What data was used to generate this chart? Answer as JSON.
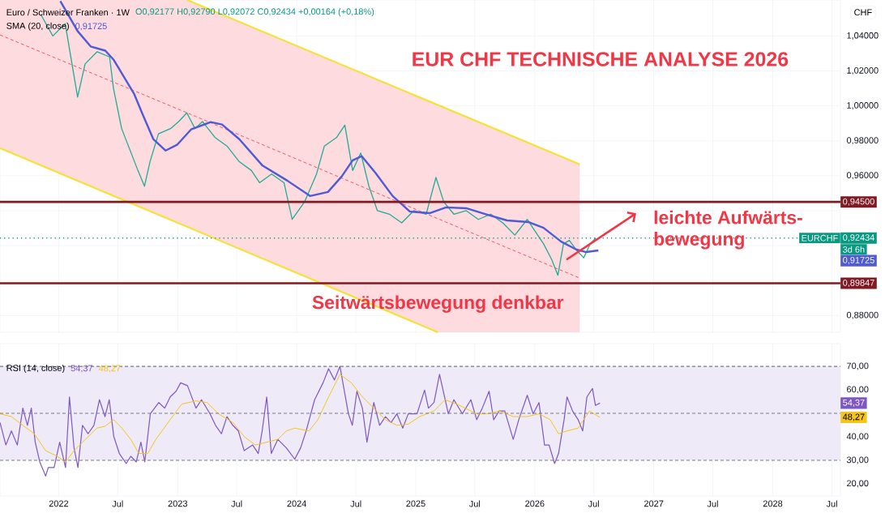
{
  "chart_data": [
    {
      "type": "line",
      "title": "EUR CHF TECHNISCHE ANALYSE 2026",
      "annotations": [
        "Euro / Schweizer Franken · 1W",
        "O0,92177 H0,92790 L0,92072 C0,92434 +0,00164 (+0,18%)",
        "SMA (20, close)",
        "0,91725",
        "Seitwärtsbewegung denkbar",
        "leichte Aufwärts-",
        "bewegung",
        "EURCHF",
        "3d 6h",
        "0,91725",
        "CHF"
      ],
      "xlim": [
        "2021-07-05",
        "2028-07-27"
      ],
      "ylim": [
        0.8704,
        1.0606
      ],
      "xticks": [
        {
          "value": "2022-01-01",
          "label": null
        },
        {
          "value": "2022-07-01",
          "label": null
        },
        {
          "value": "2023-01-01",
          "label": null
        },
        {
          "value": "2023-07-01",
          "label": null
        },
        {
          "value": "2024-01-01",
          "label": null
        },
        {
          "value": "2024-07-01",
          "label": null
        },
        {
          "value": "2025-01-01",
          "label": null
        },
        {
          "value": "2025-07-01",
          "label": null
        },
        {
          "value": "2026-01-01",
          "label": null
        },
        {
          "value": "2026-07-01",
          "label": null
        },
        {
          "value": "2027-01-01",
          "label": null
        },
        {
          "value": "2027-07-01",
          "label": null
        },
        {
          "value": "2028-01-01",
          "label": null
        },
        {
          "value": "2028-07-01",
          "label": null
        }
      ],
      "yticks": [
        {
          "value": 0.88,
          "label": "0,88000"
        },
        {
          "value": 0.9,
          "label": null
        },
        {
          "value": 0.92,
          "label": null
        },
        {
          "value": 0.94,
          "label": null
        },
        {
          "value": 0.96,
          "label": "0,96000"
        },
        {
          "value": 0.98,
          "label": "0,98000"
        },
        {
          "value": 1.0,
          "label": "1,00000"
        },
        {
          "value": 1.02,
          "label": "1,02000"
        },
        {
          "value": 1.04,
          "label": "1,04000"
        }
      ],
      "tick_labels": "y",
      "grid": true,
      "ref_lines": [
        {
          "axis": "y",
          "value": 0.945,
          "label": "0,94500",
          "color": "#801922"
        },
        {
          "axis": "y",
          "value": 0.89847,
          "label": "0,89847",
          "color": "#801922"
        },
        {
          "axis": "y",
          "value": 0.92434,
          "label": "0,92434",
          "color": "#089981",
          "line_style": "dotted"
        }
      ],
      "series": [
        {
          "color": "#f23645",
          "line_style": "dashed",
          "x": [
            "2021-07-05",
            "2023-01-30",
            "2025-03-10",
            "2026-05-19"
          ],
          "values": [
            1.0406,
            0.996,
            0.9354,
            0.9014
          ],
          "lower": [
            0.9758,
            0.9309,
            0.8704,
            0.8704
          ],
          "upper": [
            1.0606,
            1.0606,
            1.0006,
            0.9665
          ]
        },
        {
          "color": "#f5e138",
          "x": [
            "2023-01-30",
            "2026-05-19"
          ],
          "values": [
            1.0606,
            0.9665
          ]
        },
        {
          "color": "#f5e138",
          "x": [
            "2021-07-05",
            "2025-03-10"
          ],
          "values": [
            0.9758,
            0.8704
          ]
        },
        {
          "color": "#22ab94",
          "x": [
            "2021-11-08",
            "2021-12-14",
            "2022-01-21",
            "2022-02-28",
            "2022-03-23",
            "2022-04-29",
            "2022-06-06",
            "2022-06-18",
            "2022-07-13",
            "2022-08-07",
            "2022-09-01",
            "2022-09-21",
            "2022-10-08",
            "2022-11-03",
            "2022-12-10",
            "2023-01-04",
            "2023-01-29",
            "2023-02-23",
            "2023-03-18",
            "2023-04-25",
            "2023-06-01",
            "2023-07-09",
            "2023-08-15",
            "2023-09-09",
            "2023-10-16",
            "2023-11-23",
            "2023-12-18",
            "2024-01-25",
            "2024-03-02",
            "2024-03-26",
            "2024-05-03",
            "2024-05-28",
            "2024-06-21",
            "2024-07-16",
            "2024-08-10",
            "2024-09-05",
            "2024-10-12",
            "2024-11-19",
            "2024-12-26",
            "2025-02-02",
            "2025-03-04",
            "2025-03-28",
            "2025-04-28",
            "2025-06-05",
            "2025-07-12",
            "2025-08-19",
            "2025-09-25",
            "2025-11-01",
            "2025-12-09",
            "2026-01-03",
            "2026-01-28",
            "2026-02-22",
            "2026-03-13",
            "2026-03-30",
            "2026-04-17",
            "2026-05-11",
            "2026-05-31",
            "2026-06-20",
            "2026-07-07"
          ],
          "values": [
            1.052,
            1.04,
            1.047,
            1.005,
            1.024,
            1.031,
            1.028,
            1.01,
            0.987,
            0.975,
            0.963,
            0.954,
            0.968,
            0.984,
            0.987,
            0.991,
            0.996,
            0.987,
            0.991,
            0.982,
            0.977,
            0.968,
            0.963,
            0.956,
            0.961,
            0.956,
            0.935,
            0.945,
            0.961,
            0.977,
            0.982,
            0.989,
            0.963,
            0.973,
            0.954,
            0.94,
            0.938,
            0.933,
            0.94,
            0.938,
            0.959,
            0.945,
            0.938,
            0.94,
            0.935,
            0.938,
            0.933,
            0.926,
            0.935,
            0.928,
            0.921,
            0.912,
            0.903,
            0.921,
            0.923,
            0.917,
            0.913,
            0.921,
            0.92434
          ]
        },
        {
          "color": "#4f5bd5",
          "x": [
            "2022-01-06",
            "2022-02-28",
            "2022-04-09",
            "2022-05-24",
            "2022-06-18",
            "2022-08-20",
            "2022-09-14",
            "2022-10-18",
            "2022-11-25",
            "2022-12-30",
            "2023-02-11",
            "2023-04-12",
            "2023-05-17",
            "2023-07-09",
            "2023-09-17",
            "2023-12-03",
            "2024-02-11",
            "2024-04-06",
            "2024-05-18",
            "2024-06-21",
            "2024-07-19",
            "2024-08-31",
            "2024-10-22",
            "2024-12-14",
            "2025-02-14",
            "2025-04-04",
            "2025-06-05",
            "2025-08-02",
            "2025-10-08",
            "2025-12-12",
            "2026-01-28",
            "2026-03-23",
            "2026-05-09",
            "2026-06-08",
            "2026-07-15"
          ],
          "values": [
            1.06,
            1.0428,
            1.034,
            1.0316,
            1.0265,
            1.007,
            0.9958,
            0.981,
            0.9744,
            0.9777,
            0.9865,
            0.9907,
            0.9893,
            0.9809,
            0.966,
            0.9572,
            0.9484,
            0.9507,
            0.9595,
            0.9688,
            0.9712,
            0.9614,
            0.9484,
            0.9395,
            0.9386,
            0.9419,
            0.9414,
            0.9381,
            0.9344,
            0.9335,
            0.9302,
            0.9223,
            0.9177,
            0.9163,
            0.91725
          ]
        }
      ]
    },
    {
      "type": "line",
      "annotations": [
        "RSI (14, close)",
        "54,37",
        "48,27",
        "54,37",
        "48,27"
      ],
      "xlim": [
        "2021-07-05",
        "2028-07-27"
      ],
      "ylim": [
        14.8,
        79.7
      ],
      "xticks": [
        {
          "value": "2022-01-01",
          "label": "2022"
        },
        {
          "value": "2022-07-01",
          "label": "Jul"
        },
        {
          "value": "2023-01-01",
          "label": "2023"
        },
        {
          "value": "2023-07-01",
          "label": "Jul"
        },
        {
          "value": "2024-01-01",
          "label": "2024"
        },
        {
          "value": "2024-07-01",
          "label": "Jul"
        },
        {
          "value": "2025-01-01",
          "label": "2025"
        },
        {
          "value": "2025-07-01",
          "label": "Jul"
        },
        {
          "value": "2026-01-01",
          "label": "2026"
        },
        {
          "value": "2026-07-01",
          "label": "Jul"
        },
        {
          "value": "2027-01-01",
          "label": "2027"
        },
        {
          "value": "2027-07-01",
          "label": "Jul"
        },
        {
          "value": "2028-01-01",
          "label": "2028"
        },
        {
          "value": "2028-07-01",
          "label": "Jul"
        }
      ],
      "yticks": [
        {
          "value": 20,
          "label": "20,00"
        },
        {
          "value": 30,
          "label": "30,00"
        },
        {
          "value": 40,
          "label": "40,00"
        },
        {
          "value": 50,
          "label": null
        },
        {
          "value": 60,
          "label": "60,00"
        },
        {
          "value": 70,
          "label": "70,00"
        }
      ],
      "grid": "x",
      "bands": [
        {
          "axis": "y",
          "from": 30,
          "to": 70,
          "color": "#efeaf8"
        }
      ],
      "ref_lines": [
        {
          "axis": "y",
          "value": 70,
          "color": "#787b86",
          "line_style": "dashed"
        },
        {
          "axis": "y",
          "value": 50,
          "color": "#787b86",
          "line_style": "dashed"
        },
        {
          "axis": "y",
          "value": 30,
          "color": "#787b86",
          "line_style": "dashed"
        }
      ],
      "series": [
        {
          "color": "#7e57c2",
          "x": [
            "2021-07-05",
            "2021-07-23",
            "2021-08-09",
            "2021-08-27",
            "2021-09-13",
            "2021-09-27",
            "2021-10-09",
            "2021-10-21",
            "2021-11-04",
            "2021-11-22",
            "2021-11-30",
            "2021-12-18",
            "2022-01-04",
            "2022-01-22",
            "2022-02-03",
            "2022-02-17",
            "2022-03-01",
            "2022-03-15",
            "2022-04-01",
            "2022-04-19",
            "2022-05-06",
            "2022-05-23",
            "2022-06-05",
            "2022-06-19",
            "2022-07-06",
            "2022-07-27",
            "2022-08-10",
            "2022-08-27",
            "2022-09-10",
            "2022-09-22",
            "2022-10-09",
            "2022-11-04",
            "2022-11-22",
            "2022-12-09",
            "2022-12-27",
            "2023-01-10",
            "2023-01-31",
            "2023-02-26",
            "2023-03-15",
            "2023-04-10",
            "2023-04-27",
            "2023-05-15",
            "2023-06-01",
            "2023-06-19",
            "2023-07-06",
            "2023-07-24",
            "2023-08-19",
            "2023-09-05",
            "2023-09-17",
            "2023-10-01",
            "2023-10-15",
            "2023-11-04",
            "2023-11-30",
            "2023-12-26",
            "2024-01-13",
            "2024-01-30",
            "2024-02-25",
            "2024-03-22",
            "2024-04-08",
            "2024-04-26",
            "2024-05-13",
            "2024-06-08",
            "2024-06-20",
            "2024-07-04",
            "2024-07-21",
            "2024-08-04",
            "2024-08-25",
            "2024-09-12",
            "2024-09-30",
            "2024-10-17",
            "2024-11-04",
            "2024-11-22",
            "2024-12-09",
            "2025-01-05",
            "2025-01-28",
            "2025-02-09",
            "2025-02-26",
            "2025-03-15",
            "2025-04-11",
            "2025-04-28",
            "2025-05-24",
            "2025-06-19",
            "2025-07-07",
            "2025-07-24",
            "2025-08-14",
            "2025-08-28",
            "2025-09-14",
            "2025-10-01",
            "2025-10-27",
            "2025-11-13",
            "2025-12-09",
            "2025-12-27",
            "2026-01-14",
            "2026-01-31",
            "2026-02-14",
            "2026-03-03",
            "2026-03-15",
            "2026-04-01",
            "2026-04-10",
            "2026-04-27",
            "2026-05-14",
            "2026-05-28",
            "2026-06-10",
            "2026-06-27",
            "2026-07-06",
            "2026-07-20"
          ],
          "values": [
            46.1,
            36.5,
            42.5,
            36.5,
            52.2,
            44.9,
            52.2,
            37.7,
            29.3,
            23.3,
            26.9,
            26.9,
            37.7,
            26.9,
            57.0,
            35.3,
            26.9,
            44.9,
            41.3,
            44.9,
            55.8,
            48.6,
            55.8,
            40.1,
            32.9,
            28.6,
            31.7,
            29.3,
            37.7,
            29.3,
            49.8,
            54.6,
            52.2,
            57.0,
            59.4,
            63.0,
            61.8,
            52.2,
            55.8,
            49.8,
            44.9,
            41.3,
            48.6,
            44.9,
            42.5,
            34.1,
            36.5,
            32.9,
            42.5,
            57.0,
            32.9,
            38.9,
            35.3,
            30.5,
            35.3,
            42.5,
            55.8,
            63.0,
            69.0,
            64.2,
            70.0,
            49.8,
            44.9,
            59.4,
            52.2,
            37.7,
            54.6,
            44.9,
            48.6,
            46.1,
            49.8,
            43.7,
            49.8,
            49.8,
            59.9,
            52.2,
            54.6,
            66.6,
            49.8,
            55.8,
            49.8,
            55.8,
            47.3,
            52.2,
            59.4,
            47.3,
            51.0,
            51.0,
            38.9,
            47.3,
            57.7,
            49.8,
            54.6,
            36.5,
            36.5,
            28.6,
            32.9,
            47.3,
            57.0,
            51.0,
            47.3,
            42.5,
            57.0,
            60.6,
            53.4,
            54.37
          ]
        },
        {
          "color": "#f5c518",
          "x": [
            "2021-07-05",
            "2021-08-09",
            "2021-09-13",
            "2021-10-18",
            "2021-11-22",
            "2021-12-27",
            "2022-01-22",
            "2022-02-17",
            "2022-03-24",
            "2022-04-28",
            "2022-05-23",
            "2022-06-19",
            "2022-07-14",
            "2022-08-10",
            "2022-09-04",
            "2022-10-01",
            "2022-10-26",
            "2022-12-09",
            "2023-01-13",
            "2023-02-26",
            "2023-04-01",
            "2023-05-06",
            "2023-06-19",
            "2023-07-24",
            "2023-08-27",
            "2023-10-01",
            "2023-11-04",
            "2023-11-30",
            "2023-12-26",
            "2024-02-08",
            "2024-03-06",
            "2024-04-08",
            "2024-05-13",
            "2024-06-17",
            "2024-07-21",
            "2024-08-25",
            "2024-09-30",
            "2024-11-04",
            "2024-12-09",
            "2025-01-13",
            "2025-02-26",
            "2025-04-01",
            "2025-05-15",
            "2025-07-07",
            "2025-08-10",
            "2025-09-14",
            "2025-10-27",
            "2025-12-09",
            "2026-01-14",
            "2026-02-17",
            "2026-03-15",
            "2026-04-10",
            "2026-05-14",
            "2026-06-18",
            "2026-07-20"
          ],
          "values": [
            49.8,
            48.6,
            44.9,
            41.3,
            34.1,
            31.7,
            29.3,
            34.1,
            38.9,
            43.7,
            44.5,
            47.3,
            43.7,
            38.9,
            32.9,
            32.9,
            38.9,
            47.3,
            53.9,
            55.3,
            54.6,
            49.8,
            46.1,
            40.1,
            36.5,
            37.7,
            38.9,
            42.5,
            43.7,
            42.5,
            47.3,
            57.0,
            66.6,
            63.0,
            57.0,
            52.2,
            47.3,
            44.9,
            45.4,
            48.6,
            51.0,
            55.8,
            53.4,
            49.8,
            49.8,
            51.0,
            48.6,
            48.6,
            49.8,
            47.3,
            41.3,
            42.5,
            43.7,
            51.0,
            48.27
          ]
        }
      ]
    }
  ]
}
